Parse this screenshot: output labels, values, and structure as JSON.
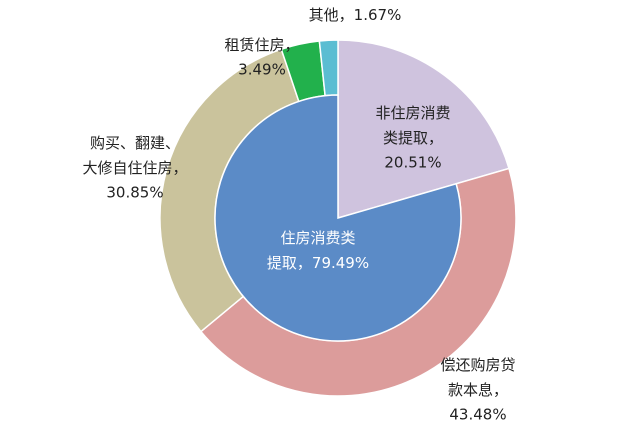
{
  "chart_data": {
    "type": "pie",
    "slices": [
      {
        "label": [
          "非住房消费",
          "类提取，"
        ],
        "value": 20.51,
        "value_label": "20.51%",
        "color": "#cfc3de",
        "ring": "full"
      },
      {
        "label": [
          "偿还购房贷",
          "款本息，"
        ],
        "value": 43.48,
        "value_label": "43.48%",
        "color": "#dc9c9b",
        "ring": "outer"
      },
      {
        "label": [
          "购买、翻建、",
          "大修自住住房，"
        ],
        "value": 30.85,
        "value_label": "30.85%",
        "color": "#cac39c",
        "ring": "outer"
      },
      {
        "label": [
          "租赁住房，"
        ],
        "value": 3.49,
        "value_label": "3.49%",
        "color": "#22b14c",
        "ring": "outer"
      },
      {
        "label": [
          "其他，"
        ],
        "value": 1.67,
        "value_label": "1.67%",
        "color": "#5bbdd2",
        "ring": "outer"
      }
    ],
    "inner": {
      "label": [
        "住房消费类",
        "提取，"
      ],
      "value": 79.49,
      "value_label": "79.49%",
      "color": "#5b8bc7"
    }
  }
}
